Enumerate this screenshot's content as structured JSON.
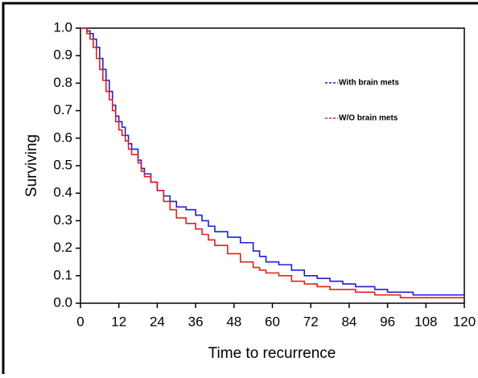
{
  "chart_data": {
    "type": "line",
    "step": true,
    "x_label": "Time to recurrence",
    "y_label": "Surviving",
    "x": [
      0,
      2,
      3,
      4,
      5,
      6,
      7,
      8,
      9,
      10,
      11,
      12,
      13,
      14,
      15,
      16,
      18,
      19,
      20,
      22,
      24,
      26,
      28,
      30,
      33,
      36,
      38,
      40,
      42,
      46,
      50,
      54,
      56,
      58,
      62,
      66,
      70,
      74,
      78,
      82,
      86,
      92,
      96,
      100,
      104,
      110,
      120
    ],
    "series": [
      {
        "name": "With brain mets",
        "color": "#1f1fd6",
        "values": [
          1.0,
          0.99,
          0.98,
          0.96,
          0.93,
          0.89,
          0.85,
          0.81,
          0.77,
          0.72,
          0.68,
          0.66,
          0.64,
          0.61,
          0.58,
          0.56,
          0.52,
          0.49,
          0.47,
          0.44,
          0.41,
          0.39,
          0.37,
          0.35,
          0.34,
          0.32,
          0.3,
          0.28,
          0.26,
          0.24,
          0.22,
          0.19,
          0.17,
          0.15,
          0.14,
          0.12,
          0.1,
          0.09,
          0.08,
          0.07,
          0.06,
          0.05,
          0.04,
          0.04,
          0.03,
          0.03,
          0.03
        ]
      },
      {
        "name": "W/O brain mets",
        "color": "#e02020",
        "values": [
          1.0,
          0.98,
          0.96,
          0.93,
          0.89,
          0.85,
          0.81,
          0.77,
          0.74,
          0.7,
          0.66,
          0.63,
          0.61,
          0.59,
          0.56,
          0.54,
          0.51,
          0.48,
          0.46,
          0.44,
          0.41,
          0.37,
          0.34,
          0.31,
          0.29,
          0.27,
          0.25,
          0.23,
          0.21,
          0.18,
          0.15,
          0.13,
          0.12,
          0.11,
          0.1,
          0.08,
          0.07,
          0.06,
          0.05,
          0.05,
          0.04,
          0.03,
          0.03,
          0.02,
          0.02,
          0.02,
          0.02
        ]
      }
    ],
    "xlim": [
      0,
      120
    ],
    "xticks": [
      0,
      12,
      24,
      36,
      48,
      60,
      72,
      84,
      96,
      108,
      120
    ],
    "ylim": [
      0,
      1
    ],
    "yticks": [
      {
        "value": 0,
        "label": "0.0"
      },
      0.1,
      0.2,
      0.3,
      0.4,
      0.5,
      0.6,
      0.7,
      0.8,
      0.9,
      {
        "value": 1,
        "label": "1.0"
      }
    ],
    "legend": "upper-right"
  }
}
